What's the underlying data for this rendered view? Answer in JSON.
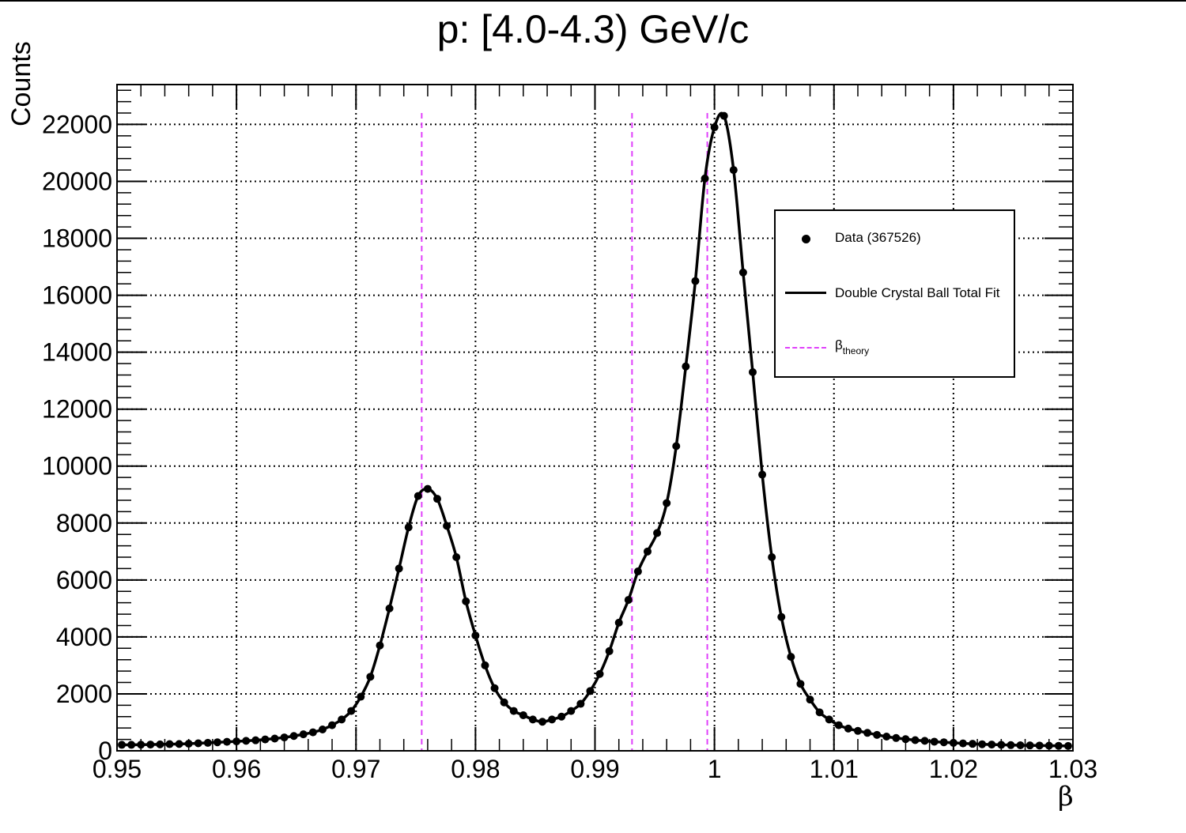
{
  "chart_data": {
    "type": "scatter",
    "title": "p: [4.0-4.3) GeV/c",
    "xlabel": "β",
    "ylabel": "Counts",
    "xlim": [
      0.95,
      1.03
    ],
    "ylim": [
      0,
      23400
    ],
    "xticks": [
      "0.95",
      "0.96",
      "0.97",
      "0.98",
      "0.99",
      "1",
      "1.01",
      "1.02",
      "1.03"
    ],
    "yticks": [
      "0",
      "2000",
      "4000",
      "6000",
      "8000",
      "10000",
      "12000",
      "14000",
      "16000",
      "18000",
      "20000",
      "22000"
    ],
    "grid": true,
    "legend_position": "top-right",
    "series": [
      {
        "name": "Data (367526)",
        "style": "points",
        "color": "#000000",
        "x": [
          0.9504,
          0.9512,
          0.952,
          0.9528,
          0.9536,
          0.9544,
          0.9552,
          0.956,
          0.9568,
          0.9576,
          0.9584,
          0.9592,
          0.96,
          0.9608,
          0.9616,
          0.9624,
          0.9632,
          0.964,
          0.9648,
          0.9656,
          0.9664,
          0.9672,
          0.968,
          0.9688,
          0.9696,
          0.9704,
          0.9712,
          0.972,
          0.9728,
          0.9736,
          0.9744,
          0.9752,
          0.976,
          0.9768,
          0.9776,
          0.9784,
          0.9792,
          0.98,
          0.9808,
          0.9816,
          0.9824,
          0.9832,
          0.984,
          0.9848,
          0.9856,
          0.9864,
          0.9872,
          0.988,
          0.9888,
          0.9896,
          0.9904,
          0.9912,
          0.992,
          0.9928,
          0.9936,
          0.9944,
          0.9952,
          0.996,
          0.9968,
          0.9976,
          0.9984,
          0.9992,
          1.0,
          1.0008,
          1.0016,
          1.0024,
          1.0032,
          1.004,
          1.0048,
          1.0056,
          1.0064,
          1.0072,
          1.008,
          1.0088,
          1.0096,
          1.0104,
          1.0112,
          1.012,
          1.0128,
          1.0136,
          1.0144,
          1.0152,
          1.016,
          1.0168,
          1.0176,
          1.0184,
          1.0192,
          1.02,
          1.0208,
          1.0216,
          1.0224,
          1.0232,
          1.024,
          1.0248,
          1.0256,
          1.0264,
          1.0272,
          1.028,
          1.0288,
          1.0296
        ],
        "y": [
          210,
          210,
          215,
          220,
          225,
          235,
          240,
          250,
          265,
          280,
          300,
          315,
          330,
          350,
          370,
          400,
          430,
          470,
          520,
          580,
          650,
          750,
          900,
          1100,
          1400,
          1900,
          2600,
          3700,
          5000,
          6400,
          7850,
          8950,
          9200,
          8850,
          7900,
          6800,
          5250,
          4050,
          3000,
          2200,
          1700,
          1400,
          1250,
          1100,
          1020,
          1100,
          1200,
          1400,
          1650,
          2100,
          2700,
          3500,
          4500,
          5300,
          6300,
          7000,
          7650,
          8700,
          10700,
          13500,
          16500,
          20100,
          21900,
          22300,
          20400,
          16800,
          13300,
          9700,
          6800,
          4700,
          3300,
          2350,
          1800,
          1350,
          1100,
          900,
          780,
          700,
          630,
          560,
          500,
          450,
          410,
          375,
          350,
          320,
          300,
          280,
          260,
          245,
          230,
          220,
          210,
          200,
          195,
          190,
          185,
          180,
          175,
          170
        ]
      },
      {
        "name": "Double Crystal Ball Total Fit",
        "style": "line",
        "color": "#000000"
      },
      {
        "name": "β",
        "name_sub": "theory",
        "style": "vertical-dashed",
        "color": "#e040fb",
        "x": [
          0.9755,
          0.9931,
          0.9994
        ],
        "y_top": 22400
      }
    ]
  }
}
